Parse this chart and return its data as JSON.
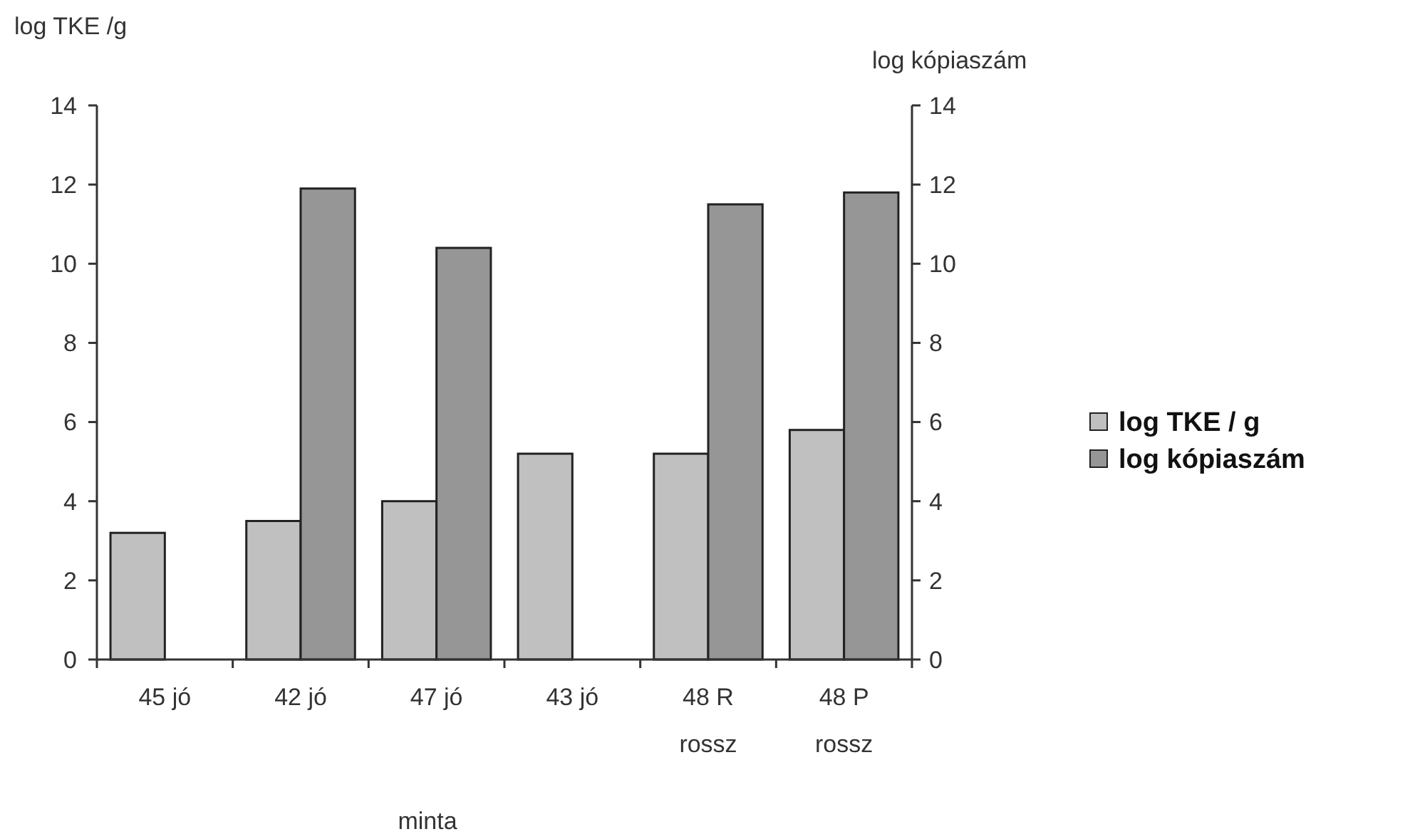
{
  "chart_data": {
    "type": "bar",
    "xlabel": "minta",
    "ylabel": "log TKE /g",
    "y2label": "log kópiaszám",
    "categories": [
      "45 jó",
      "42 jó",
      "47 jó",
      "43 jó",
      "48 R\nrossz",
      "48 P\nrossz"
    ],
    "series": [
      {
        "name": "log TKE / g",
        "color": "#c0c0c0",
        "values": [
          3.2,
          3.5,
          4.0,
          5.2,
          5.2,
          5.8
        ]
      },
      {
        "name": "log kópiaszám",
        "color": "#969696",
        "values": [
          null,
          11.9,
          10.4,
          null,
          11.5,
          11.8
        ]
      }
    ],
    "ylim": [
      0,
      14
    ],
    "yticks": [
      0,
      2,
      4,
      6,
      8,
      10,
      12,
      14
    ],
    "y2lim": [
      0,
      14
    ],
    "y2ticks": [
      0,
      2,
      4,
      6,
      8,
      10,
      12,
      14
    ],
    "grid": false,
    "legend": "right"
  }
}
